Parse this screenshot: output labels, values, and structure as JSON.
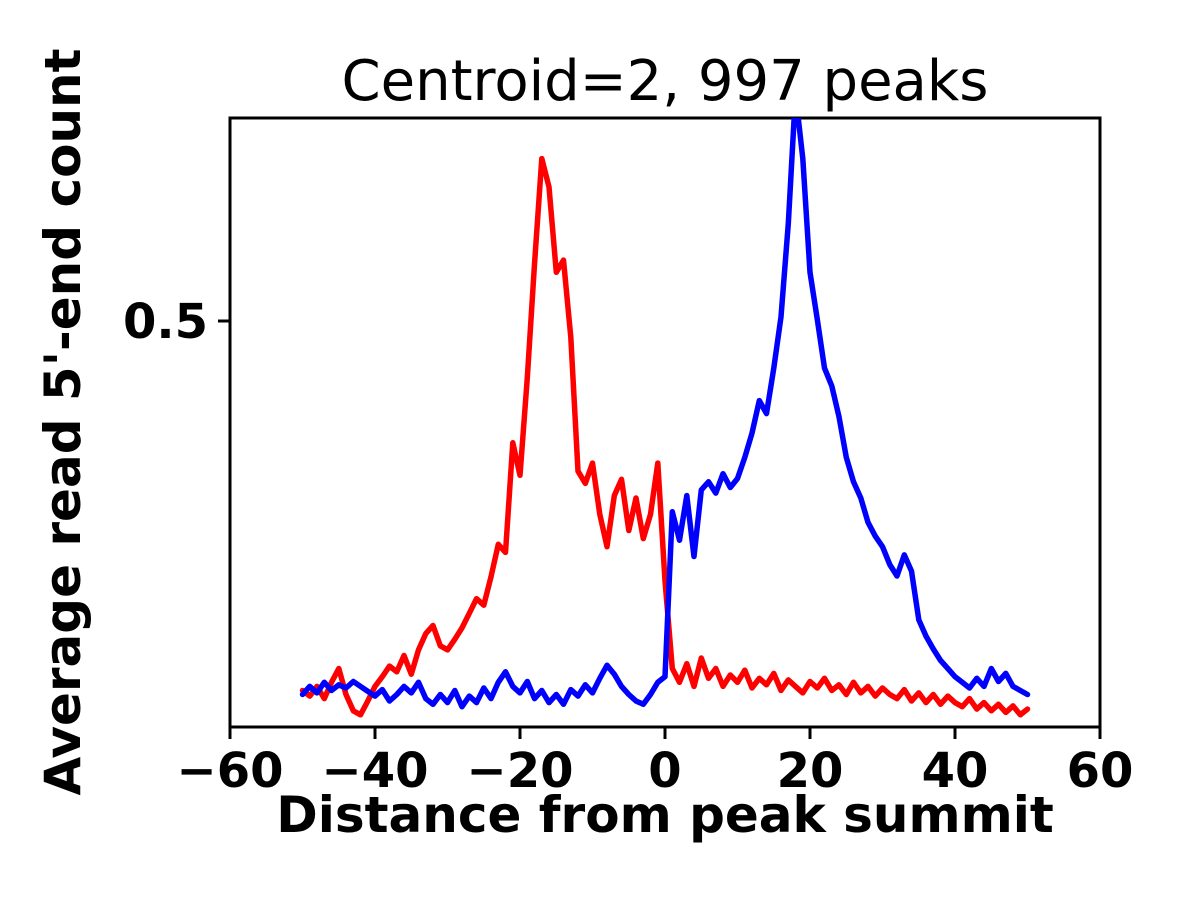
{
  "figure": {
    "background": "#ffffff",
    "frame_color": "#000000"
  },
  "chart_data": {
    "type": "line",
    "title": "Centroid=2, 997 peaks",
    "xlabel": "Distance from peak summit",
    "ylabel": "Average read 5'-end count",
    "xlim": [
      -60,
      60
    ],
    "ylim": [
      0,
      0.75
    ],
    "x_ticks": [
      -60,
      -40,
      -20,
      0,
      20,
      40,
      60
    ],
    "x_tick_labels": [
      "−60",
      "−40",
      "−20",
      "0",
      "20",
      "40",
      "60"
    ],
    "y_ticks": [
      0.5
    ],
    "y_tick_labels": [
      "0.5"
    ],
    "grid": false,
    "legend": "none",
    "line_width": 5.5,
    "x": [
      -50,
      -49,
      -48,
      -47,
      -46,
      -45,
      -44,
      -43,
      -42,
      -41,
      -40,
      -39,
      -38,
      -37,
      -36,
      -35,
      -34,
      -33,
      -32,
      -31,
      -30,
      -29,
      -28,
      -27,
      -26,
      -25,
      -24,
      -23,
      -22,
      -21,
      -20,
      -19,
      -18,
      -17,
      -16,
      -15,
      -14,
      -13,
      -12,
      -11,
      -10,
      -9,
      -8,
      -7,
      -6,
      -5,
      -4,
      -3,
      -2,
      -1,
      0,
      1,
      2,
      3,
      4,
      5,
      6,
      7,
      8,
      9,
      10,
      11,
      12,
      13,
      14,
      15,
      16,
      17,
      18,
      19,
      20,
      21,
      22,
      23,
      24,
      25,
      26,
      27,
      28,
      29,
      30,
      31,
      32,
      33,
      34,
      35,
      36,
      37,
      38,
      39,
      40,
      41,
      42,
      43,
      44,
      45,
      46,
      47,
      48,
      49,
      50
    ],
    "series": [
      {
        "name": "red",
        "color": "#ff0000",
        "values": [
          0.045,
          0.038,
          0.05,
          0.035,
          0.055,
          0.072,
          0.04,
          0.02,
          0.015,
          0.032,
          0.05,
          0.062,
          0.075,
          0.068,
          0.088,
          0.065,
          0.095,
          0.115,
          0.125,
          0.1,
          0.095,
          0.108,
          0.122,
          0.14,
          0.158,
          0.15,
          0.185,
          0.225,
          0.215,
          0.35,
          0.31,
          0.43,
          0.57,
          0.7,
          0.665,
          0.56,
          0.575,
          0.48,
          0.315,
          0.3,
          0.325,
          0.262,
          0.222,
          0.285,
          0.305,
          0.242,
          0.282,
          0.232,
          0.262,
          0.325,
          0.18,
          0.072,
          0.055,
          0.078,
          0.05,
          0.085,
          0.06,
          0.072,
          0.05,
          0.064,
          0.055,
          0.07,
          0.048,
          0.06,
          0.052,
          0.066,
          0.045,
          0.058,
          0.05,
          0.042,
          0.056,
          0.048,
          0.06,
          0.045,
          0.052,
          0.04,
          0.055,
          0.042,
          0.05,
          0.038,
          0.048,
          0.04,
          0.035,
          0.046,
          0.032,
          0.042,
          0.03,
          0.04,
          0.028,
          0.038,
          0.03,
          0.025,
          0.035,
          0.022,
          0.03,
          0.02,
          0.028,
          0.018,
          0.026,
          0.015,
          0.022
        ]
      },
      {
        "name": "blue",
        "color": "#0000ff",
        "values": [
          0.04,
          0.05,
          0.042,
          0.055,
          0.045,
          0.052,
          0.048,
          0.056,
          0.05,
          0.044,
          0.038,
          0.046,
          0.032,
          0.04,
          0.05,
          0.042,
          0.055,
          0.035,
          0.028,
          0.04,
          0.03,
          0.045,
          0.025,
          0.038,
          0.03,
          0.048,
          0.035,
          0.055,
          0.068,
          0.05,
          0.042,
          0.056,
          0.035,
          0.045,
          0.03,
          0.04,
          0.028,
          0.046,
          0.038,
          0.052,
          0.042,
          0.06,
          0.076,
          0.065,
          0.05,
          0.04,
          0.032,
          0.028,
          0.04,
          0.055,
          0.062,
          0.265,
          0.23,
          0.285,
          0.21,
          0.292,
          0.302,
          0.288,
          0.312,
          0.295,
          0.306,
          0.332,
          0.362,
          0.402,
          0.386,
          0.442,
          0.505,
          0.62,
          0.78,
          0.7,
          0.56,
          0.502,
          0.442,
          0.42,
          0.382,
          0.332,
          0.302,
          0.282,
          0.252,
          0.235,
          0.222,
          0.2,
          0.186,
          0.212,
          0.192,
          0.132,
          0.112,
          0.096,
          0.082,
          0.072,
          0.062,
          0.055,
          0.048,
          0.06,
          0.05,
          0.072,
          0.056,
          0.066,
          0.05,
          0.045,
          0.04
        ]
      }
    ]
  }
}
